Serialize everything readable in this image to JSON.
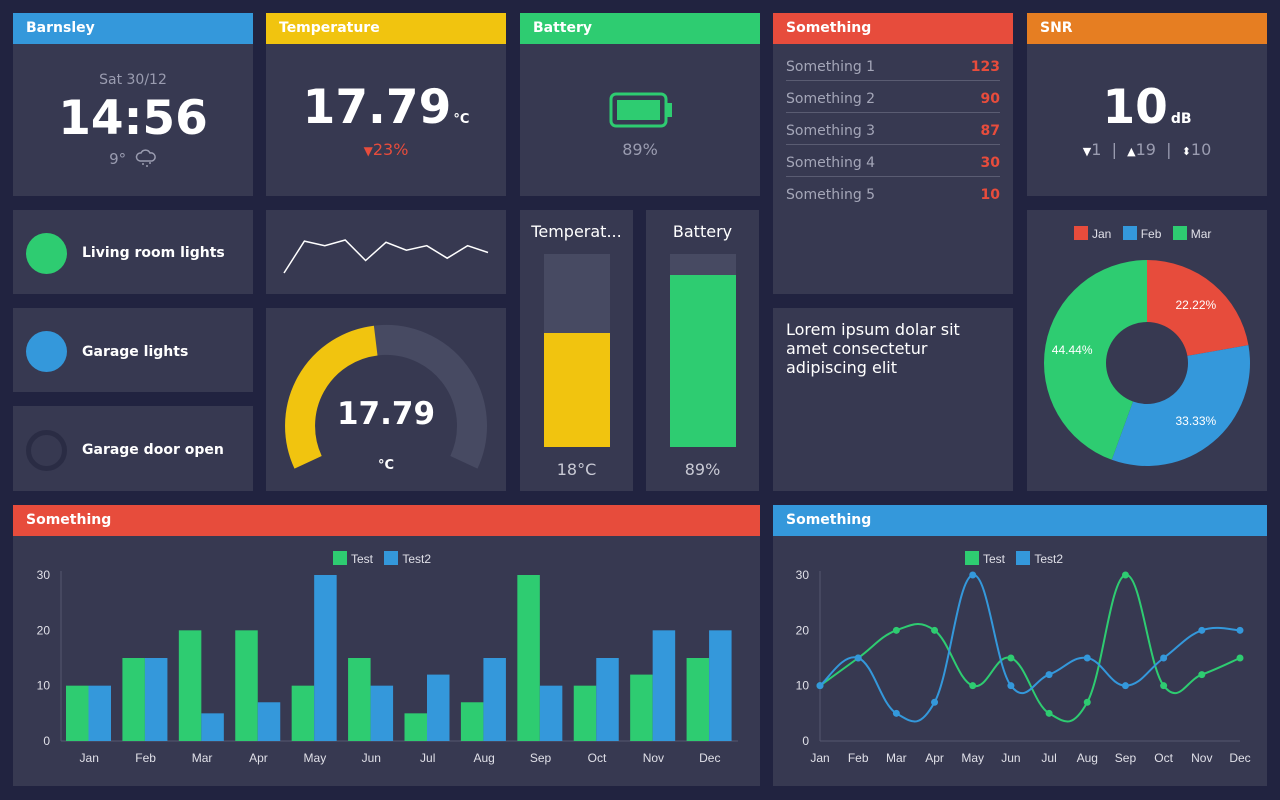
{
  "clock": {
    "header": "Barnsley",
    "date": "Sat 30/12",
    "time": "14:56",
    "temp": "9°"
  },
  "temperature": {
    "header": "Temperature",
    "value": "17.79",
    "unit": "°C",
    "change": "23%"
  },
  "battery": {
    "header": "Battery",
    "value": "89%"
  },
  "list": {
    "header": "Something",
    "items": [
      {
        "name": "Something 1",
        "value": "123"
      },
      {
        "name": "Something 2",
        "value": "90"
      },
      {
        "name": "Something 3",
        "value": "87"
      },
      {
        "name": "Something 4",
        "value": "30"
      },
      {
        "name": "Something 5",
        "value": "10"
      }
    ]
  },
  "snr": {
    "header": "SNR",
    "value": "10",
    "unit": "dB",
    "down": "1",
    "up": "19",
    "both": "10"
  },
  "switches": [
    {
      "label": "Living room lights",
      "state": "on"
    },
    {
      "label": "Garage lights",
      "state": "on"
    },
    {
      "label": "Garage door open",
      "state": "off"
    }
  ],
  "sparkline": {
    "values": [
      0,
      28,
      24,
      29,
      11,
      27,
      20,
      24,
      13,
      24,
      18
    ]
  },
  "gauge": {
    "value": "17.79",
    "unit": "°C",
    "fraction": 0.47
  },
  "level_temp": {
    "title": "Temperat...",
    "value": "18°C",
    "fraction": 0.59
  },
  "level_batt": {
    "title": "Battery",
    "value": "89%",
    "fraction": 0.89
  },
  "text_tile": {
    "text": "Lorem ipsum dolar sit amet consectetur adipiscing elit"
  },
  "colors": {
    "blue": "#3498db",
    "yellow": "#f1c40f",
    "green": "#2ecc71",
    "red": "#e74c3c",
    "orange": "#e67e22"
  },
  "chart_data": [
    {
      "type": "pie",
      "title": "",
      "categories": [
        "Jan",
        "Feb",
        "Mar"
      ],
      "values": [
        22.22,
        33.33,
        44.44
      ],
      "labels": [
        "22.22%",
        "33.33%",
        "44.44%"
      ],
      "legend": "top"
    },
    {
      "type": "bar",
      "title": "Something",
      "categories": [
        "Jan",
        "Feb",
        "Mar",
        "Apr",
        "May",
        "Jun",
        "Jul",
        "Aug",
        "Sep",
        "Oct",
        "Nov",
        "Dec"
      ],
      "series": [
        {
          "name": "Test",
          "values": [
            10,
            15,
            20,
            20,
            10,
            15,
            5,
            7,
            30,
            10,
            12,
            15
          ]
        },
        {
          "name": "Test2",
          "values": [
            10,
            15,
            5,
            7,
            30,
            10,
            12,
            15,
            10,
            15,
            20,
            20
          ]
        }
      ],
      "ylim": [
        0,
        30
      ],
      "yticks": [
        "0",
        "10",
        "20",
        "30"
      ],
      "legend": "top"
    },
    {
      "type": "line",
      "title": "Something",
      "categories": [
        "Jan",
        "Feb",
        "Mar",
        "Apr",
        "May",
        "Jun",
        "Jul",
        "Aug",
        "Sep",
        "Oct",
        "Nov",
        "Dec"
      ],
      "series": [
        {
          "name": "Test",
          "values": [
            10,
            15,
            20,
            20,
            10,
            15,
            5,
            7,
            30,
            10,
            12,
            15
          ]
        },
        {
          "name": "Test2",
          "values": [
            10,
            15,
            5,
            7,
            30,
            10,
            12,
            15,
            10,
            15,
            20,
            20
          ]
        }
      ],
      "ylim": [
        0,
        30
      ],
      "yticks": [
        "0",
        "10",
        "20",
        "30"
      ],
      "legend": "top"
    }
  ]
}
